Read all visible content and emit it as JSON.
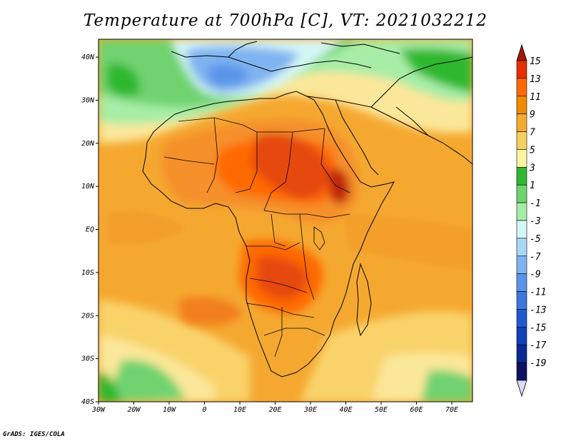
{
  "title": "Temperature at 700hPa [C], VT: 2021032212",
  "credit": "GrADS: IGES/COLA",
  "map": {
    "lat_labels": [
      "40N",
      "30N",
      "20N",
      "10N",
      "EQ",
      "10S",
      "20S",
      "30S",
      "40S"
    ],
    "lon_labels": [
      "30W",
      "20W",
      "10W",
      "0",
      "10E",
      "20E",
      "30E",
      "40E",
      "50E",
      "60E",
      "70E"
    ]
  },
  "colorbar": {
    "levels": [
      "15",
      "13",
      "11",
      "9",
      "7",
      "5",
      "3",
      "1",
      "-1",
      "-3",
      "-5",
      "-7",
      "-9",
      "-11",
      "-13",
      "-15",
      "-17",
      "-19"
    ],
    "colors": [
      "#a01a00",
      "#e62e00",
      "#ff6a00",
      "#f08a00",
      "#f5aa30",
      "#f6d060",
      "#fff5a0",
      "#2fb82f",
      "#6fd36f",
      "#a7eda7",
      "#d6f7f7",
      "#a8d8f8",
      "#7fb4f0",
      "#5a94e8",
      "#3d77de",
      "#2258cf",
      "#1141b8",
      "#0a2a90",
      "#0c1260",
      "#d8d8f8"
    ]
  }
}
